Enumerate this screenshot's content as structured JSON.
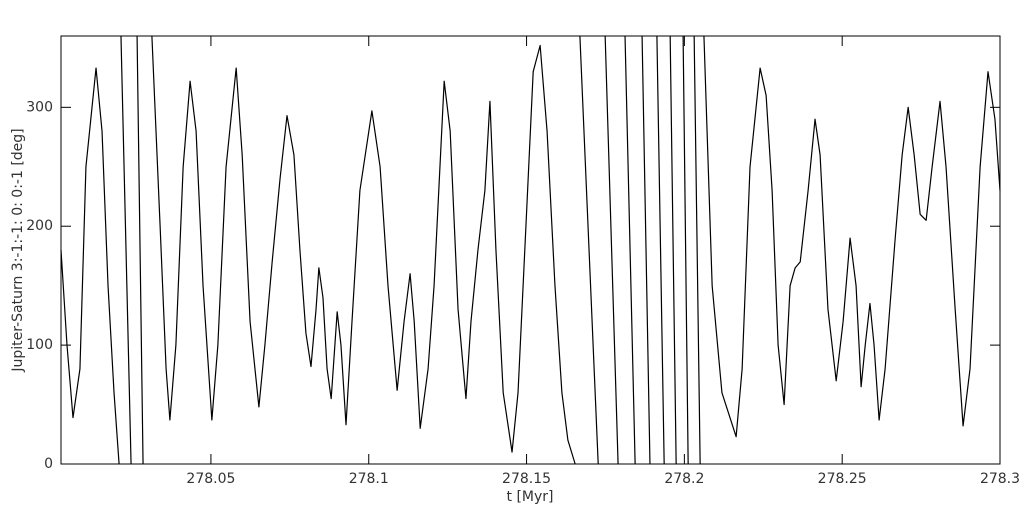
{
  "chart_data": {
    "type": "line",
    "xlabel": "t [Myr]",
    "ylabel": "Jupiter-Saturn  3:-1:-1: 0: 0:-1 [deg]",
    "color": "#000000",
    "xlim": [
      278.0025,
      278.3
    ],
    "ylim": [
      0,
      360
    ],
    "xticks": [
      278.05,
      278.1,
      278.15,
      278.2,
      278.25,
      278.3
    ],
    "yticks": [
      0,
      100,
      200,
      300
    ],
    "x": [
      278.0025,
      278.0044,
      278.0063,
      278.0085,
      278.0104,
      278.0136,
      278.0155,
      278.0174,
      278.0193,
      278.0209,
      278.0212,
      278.0215,
      278.0231,
      278.0247,
      278.0256,
      278.0266,
      278.0285,
      278.0299,
      278.0313,
      278.0339,
      278.0358,
      278.037,
      278.0389,
      278.0412,
      278.0434,
      278.0453,
      278.0475,
      278.0503,
      278.0522,
      278.0548,
      278.058,
      278.0599,
      278.0624,
      278.0652,
      278.0671,
      278.0694,
      278.0719,
      278.0741,
      278.0763,
      278.0782,
      278.0801,
      278.0817,
      278.0833,
      278.0842,
      278.0855,
      278.0868,
      278.0881,
      278.09,
      278.0912,
      278.0928,
      278.0947,
      278.0972,
      278.101,
      278.1036,
      278.1061,
      278.109,
      278.1112,
      278.1131,
      278.1144,
      278.1163,
      278.1188,
      278.1207,
      278.1239,
      278.1258,
      278.1283,
      278.1308,
      278.1324,
      278.1346,
      278.1368,
      278.1384,
      278.1403,
      278.1426,
      278.1454,
      278.1473,
      278.1498,
      278.1521,
      278.1543,
      278.1565,
      278.159,
      278.1612,
      278.1631,
      278.1654,
      278.1661,
      278.1669,
      278.1727,
      278.1738,
      278.1749,
      278.179,
      278.1801,
      278.1812,
      278.1844,
      278.1855,
      278.1866,
      278.1891,
      278.1902,
      278.1913,
      278.1936,
      278.1945,
      278.1955,
      278.1974,
      278.1985,
      278.1996,
      278.2012,
      278.2021,
      278.2031,
      278.205,
      278.2056,
      278.2062,
      278.2088,
      278.2119,
      278.2164,
      278.2183,
      278.2208,
      278.224,
      278.2259,
      278.2278,
      278.2297,
      278.2316,
      278.2335,
      278.2351,
      278.2367,
      278.2392,
      278.2414,
      278.243,
      278.2455,
      278.2481,
      278.2503,
      278.2525,
      278.2544,
      278.256,
      278.2573,
      278.2588,
      278.2601,
      278.2617,
      278.2636,
      278.2668,
      278.269,
      278.2709,
      278.2728,
      278.2747,
      278.2766,
      278.2785,
      278.281,
      278.2829,
      278.2858,
      278.2883,
      278.2905,
      278.2937,
      278.2962,
      278.2984,
      278.3
    ],
    "values": [
      180,
      100,
      39,
      80,
      250,
      333,
      280,
      150,
      60,
      0,
      null,
      360,
      180,
      0,
      null,
      360,
      0,
      null,
      360,
      200,
      80,
      37,
      100,
      250,
      322,
      280,
      150,
      37,
      100,
      250,
      333,
      260,
      120,
      48,
      100,
      170,
      240,
      293,
      260,
      180,
      110,
      82,
      130,
      165,
      140,
      80,
      55,
      128,
      100,
      33,
      120,
      230,
      297,
      250,
      150,
      62,
      120,
      160,
      120,
      30,
      80,
      150,
      322,
      280,
      130,
      55,
      120,
      180,
      230,
      305,
      180,
      60,
      10,
      60,
      200,
      330,
      352,
      280,
      150,
      60,
      20,
      0,
      null,
      360,
      0,
      null,
      360,
      0,
      null,
      360,
      0,
      null,
      360,
      0,
      null,
      360,
      0,
      null,
      360,
      0,
      null,
      360,
      0,
      null,
      360,
      0,
      null,
      360,
      150,
      60,
      23,
      80,
      250,
      333,
      310,
      230,
      100,
      50,
      150,
      165,
      170,
      230,
      290,
      260,
      130,
      70,
      120,
      190,
      150,
      65,
      100,
      135,
      100,
      37,
      80,
      190,
      260,
      300,
      260,
      210,
      205,
      250,
      305,
      250,
      130,
      32,
      80,
      250,
      330,
      290,
      230
    ]
  }
}
